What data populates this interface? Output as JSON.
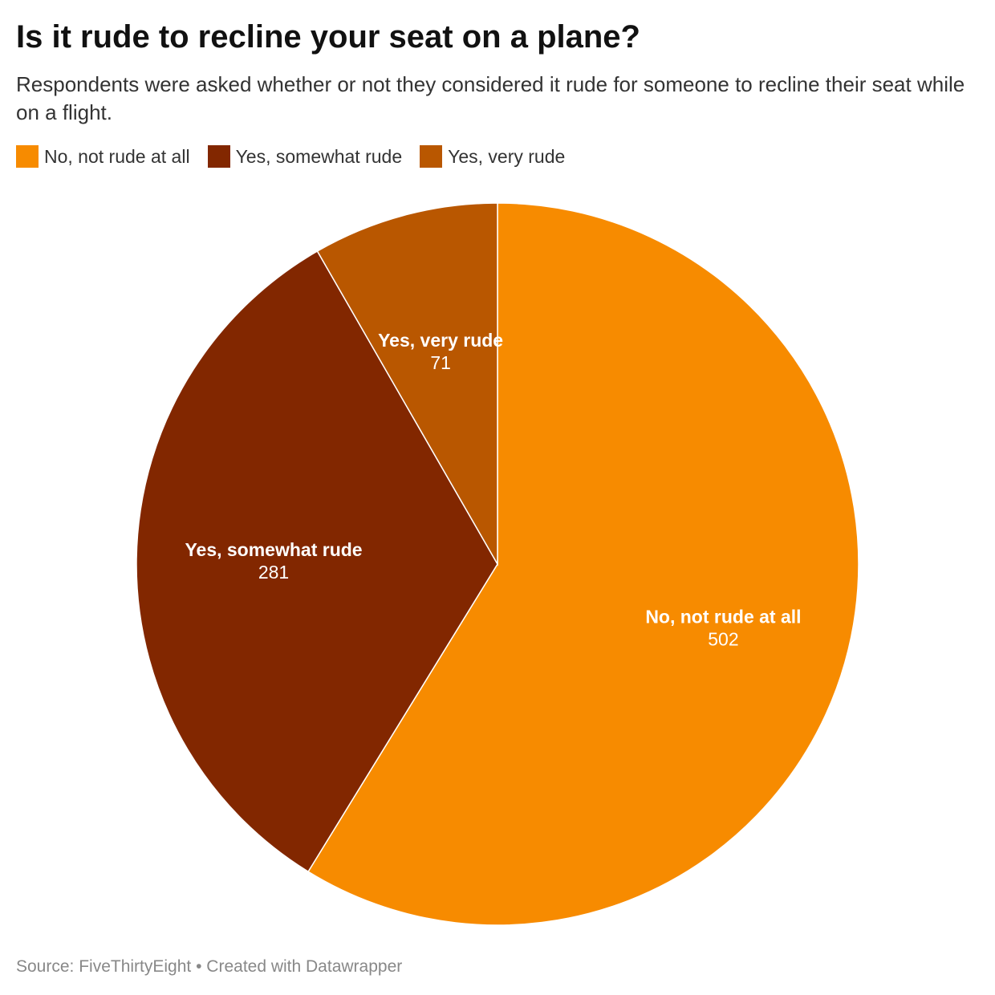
{
  "chart_data": {
    "type": "pie",
    "title": "Is it rude to recline your seat on a plane?",
    "subtitle": "Respondents were asked whether or not they considered it rude for someone to recline their seat while on a flight.",
    "categories": [
      "No, not rude at all",
      "Yes, somewhat rude",
      "Yes, very rude"
    ],
    "values": [
      502,
      281,
      71
    ],
    "colors": [
      "#f78b00",
      "#822700",
      "#b95700"
    ],
    "legend_position": "top-left",
    "source": "Source: FiveThirtyEight",
    "credit": "Created with Datawrapper",
    "separator": "•"
  }
}
